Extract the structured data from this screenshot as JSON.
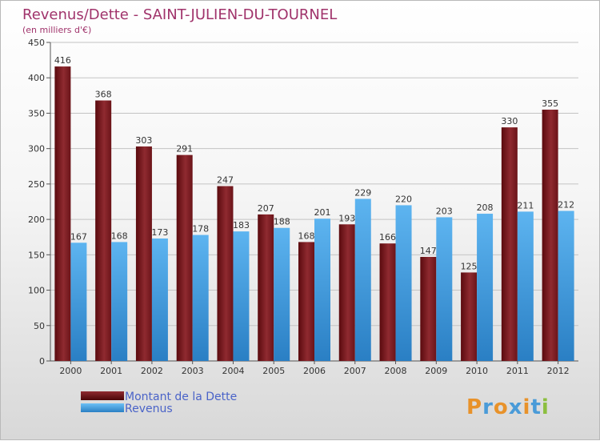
{
  "chart_data": {
    "type": "bar",
    "title": "Revenus/Dette - SAINT-JULIEN-DU-TOURNEL",
    "subtitle": "(en milliers d'€)",
    "xlabel": "",
    "ylabel": "",
    "ylim": [
      0,
      450
    ],
    "yticks": [
      0,
      50,
      100,
      150,
      200,
      250,
      300,
      350,
      400,
      450
    ],
    "categories": [
      "2000",
      "2001",
      "2002",
      "2003",
      "2004",
      "2005",
      "2006",
      "2007",
      "2008",
      "2009",
      "2010",
      "2011",
      "2012"
    ],
    "series": [
      {
        "name": "Montant de la Dette",
        "color": "#7a1a1f",
        "values": [
          416,
          368,
          303,
          291,
          247,
          207,
          168,
          193,
          166,
          147,
          125,
          330,
          355
        ]
      },
      {
        "name": "Revenus",
        "color": "#3a95d9",
        "values": [
          167,
          168,
          173,
          178,
          183,
          188,
          201,
          229,
          220,
          203,
          208,
          211,
          212
        ]
      }
    ],
    "grid": true,
    "legend_position": "bottom-left"
  },
  "brand": {
    "text": "Proxiti"
  }
}
